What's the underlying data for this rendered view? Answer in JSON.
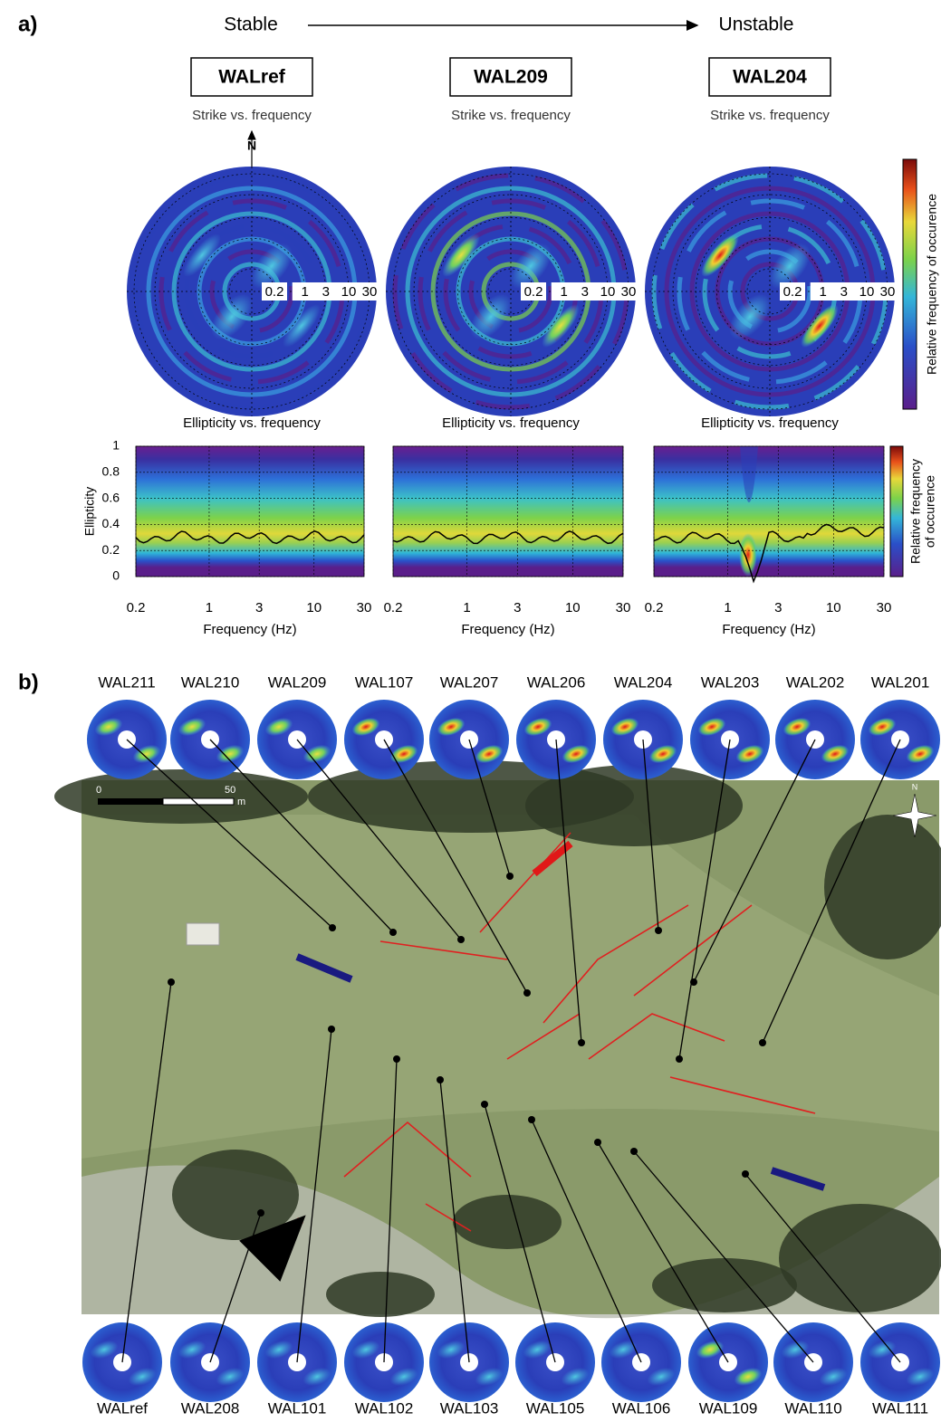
{
  "panel_a": {
    "label": "a)",
    "stable": "Stable",
    "unstable": "Unstable",
    "north": "N",
    "stations": [
      {
        "name": "WALref",
        "strike_title": "Strike vs. frequency",
        "ellipticity_title": "Ellipticity vs. frequency",
        "x_label": "Frequency (Hz)"
      },
      {
        "name": "WAL209",
        "strike_title": "Strike vs. frequency",
        "ellipticity_title": "Ellipticity vs. frequency",
        "x_label": "Frequency (Hz)"
      },
      {
        "name": "WAL204",
        "strike_title": "Strike vs. frequency",
        "ellipticity_title": "Ellipticity vs. frequency",
        "x_label": "Frequency (Hz)"
      }
    ],
    "polar_rings": [
      0.2,
      1,
      3,
      10,
      30
    ],
    "ellipticity_axis": {
      "label": "Ellipticity",
      "ylim": [
        0,
        1
      ],
      "yticks": [
        0,
        0.2,
        0.4,
        0.6,
        0.8,
        1
      ],
      "xlim": [
        0.2,
        30
      ],
      "xticks": [
        0.2,
        1,
        3,
        10,
        30
      ],
      "log_x": true,
      "grid": true
    },
    "colorbar_strike": "Relative frequency of occurence",
    "colorbar_ellipticity": [
      "Relative frequency",
      "of occurence"
    ]
  },
  "panel_b": {
    "label": "b)",
    "top_stations": [
      "WAL211",
      "WAL210",
      "WAL209",
      "WAL107",
      "WAL207",
      "WAL206",
      "WAL204",
      "WAL203",
      "WAL202",
      "WAL201"
    ],
    "bottom_stations": [
      "WALref",
      "WAL208",
      "WAL101",
      "WAL102",
      "WAL103",
      "WAL105",
      "WAL106",
      "WAL109",
      "WAL110",
      "WAL111"
    ],
    "scale": {
      "start": "0",
      "end": "50",
      "unit": "m"
    },
    "north": "N"
  }
}
